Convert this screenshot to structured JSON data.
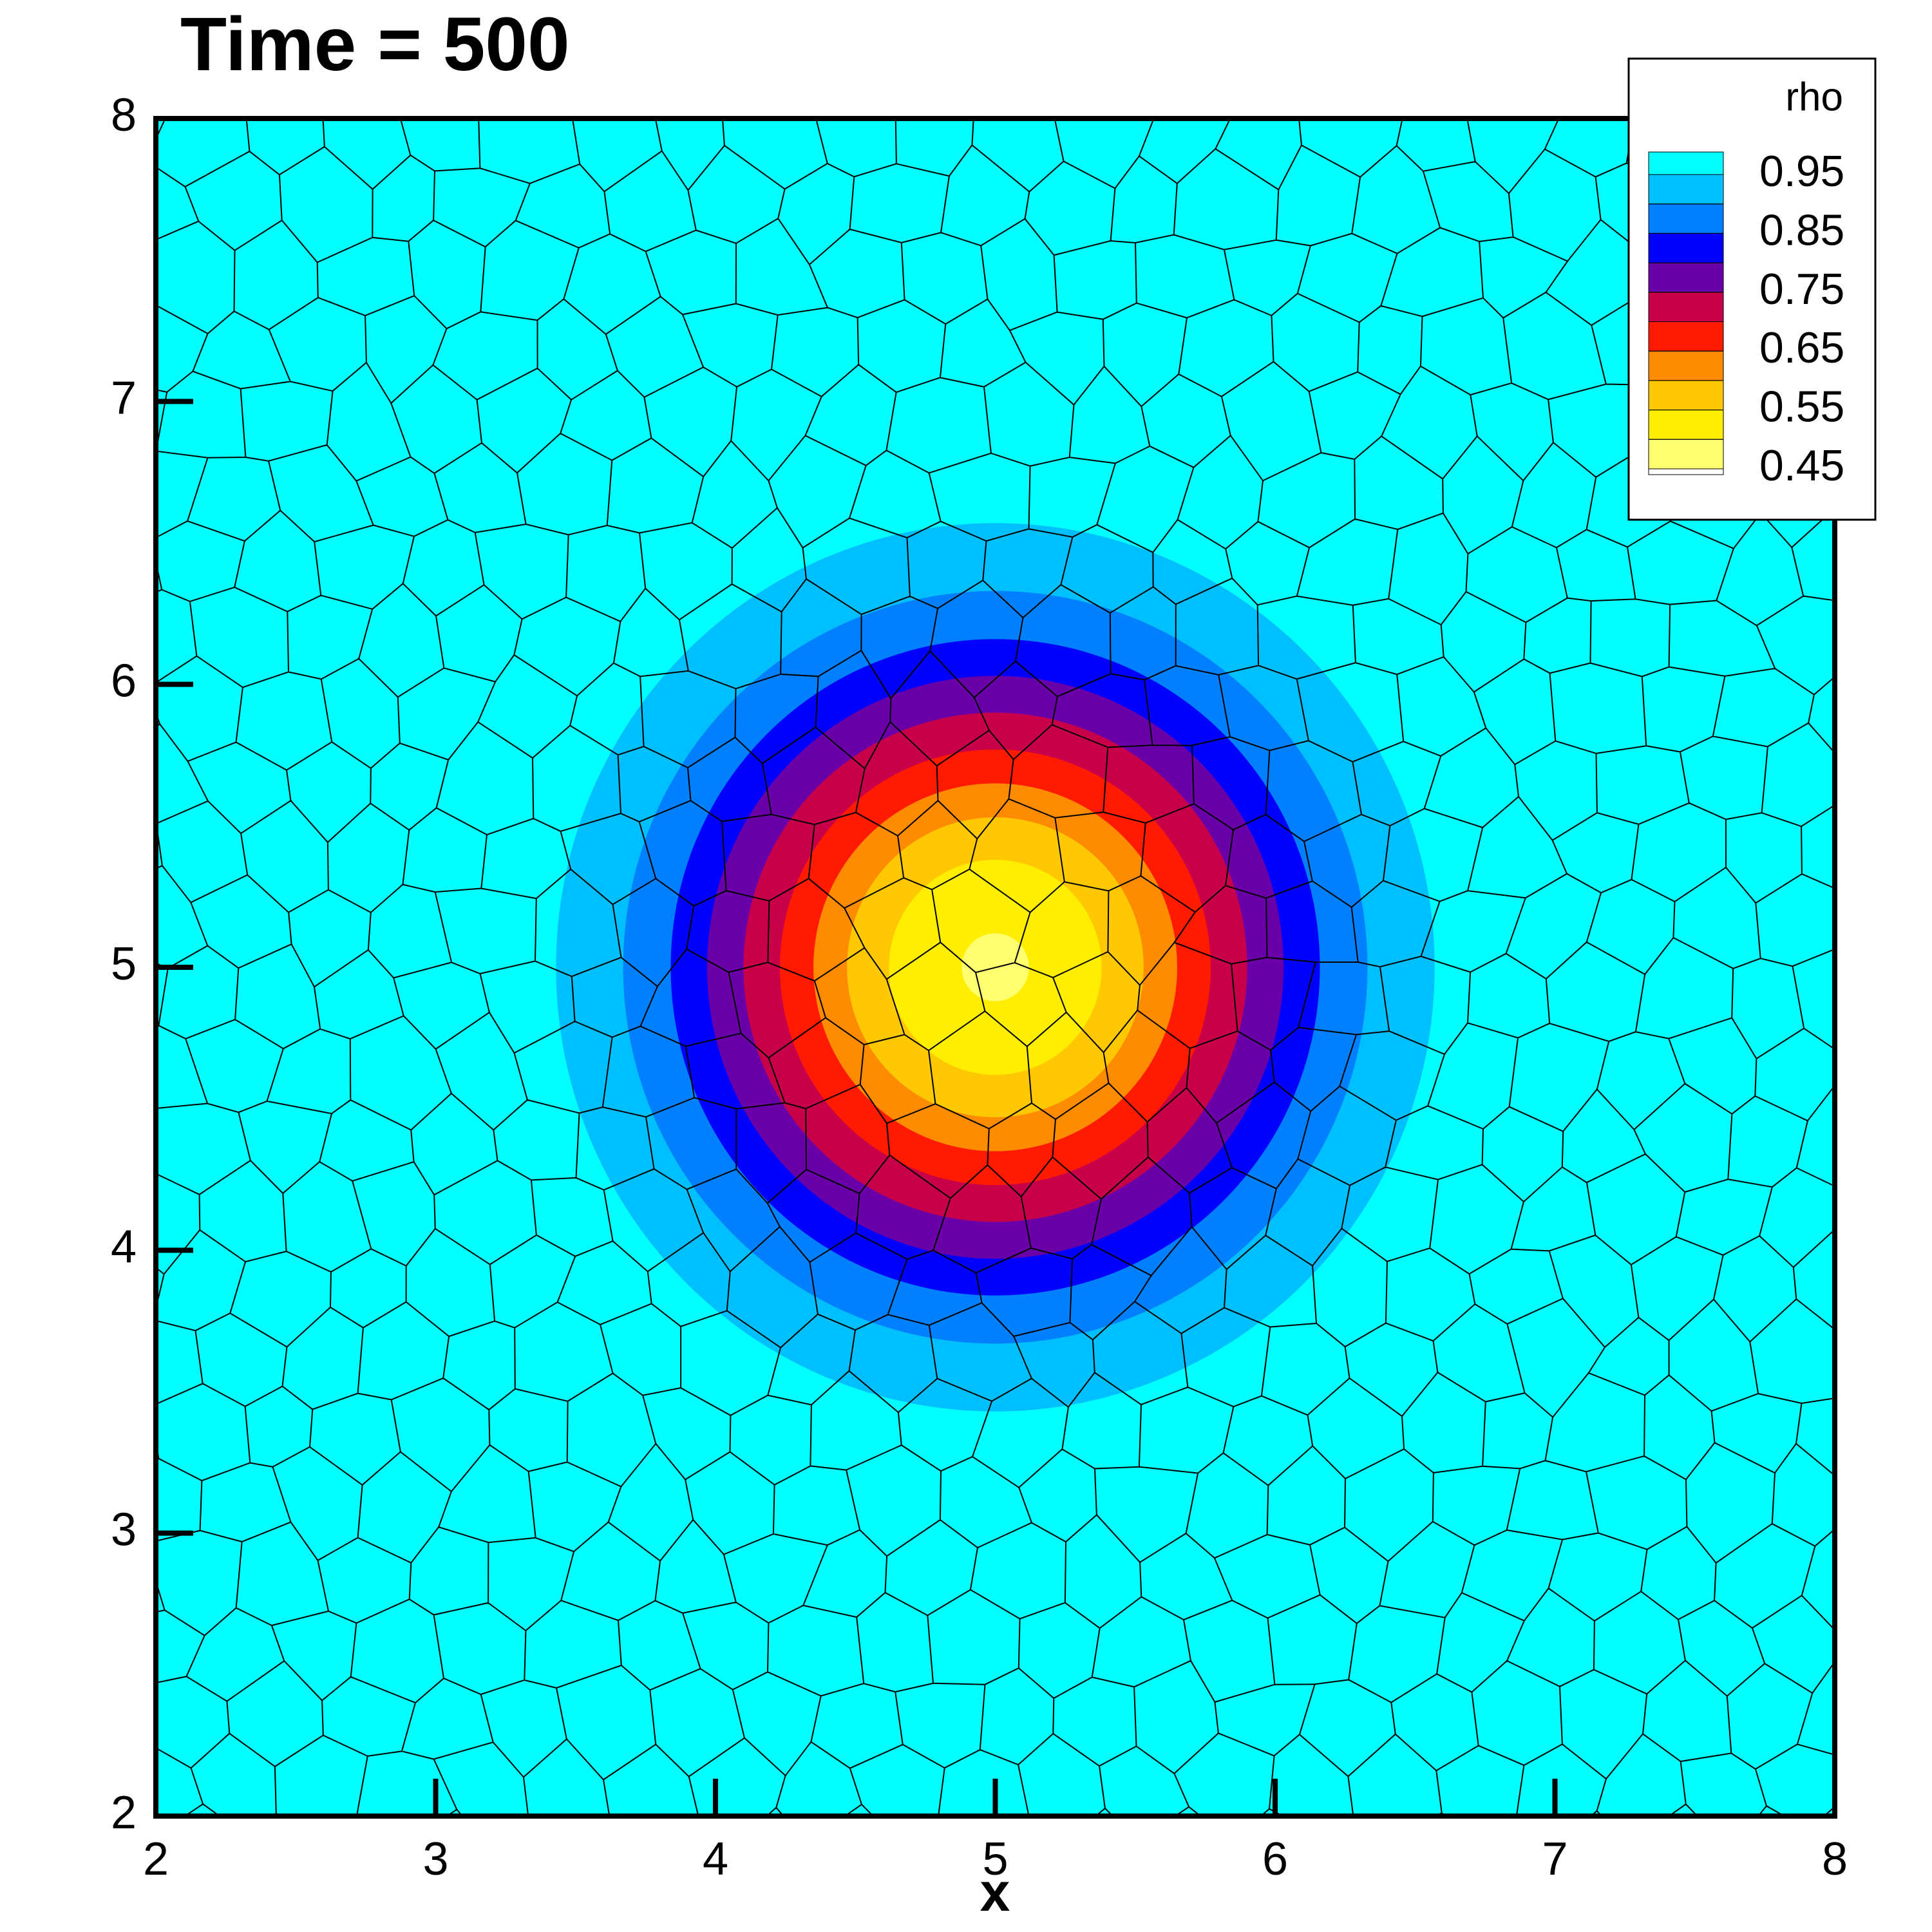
{
  "chart_data": {
    "type": "contour",
    "title": "Time = 500",
    "x_label": "x",
    "xlim": [
      2,
      8
    ],
    "ylim": [
      2,
      8
    ],
    "xticks": [
      2,
      3,
      4,
      5,
      6,
      7,
      8
    ],
    "yticks": [
      2,
      3,
      4,
      5,
      6,
      7,
      8
    ],
    "center": [
      5,
      5
    ],
    "legend_title": "rho",
    "levels": [
      0.95,
      0.9,
      0.85,
      0.8,
      0.75,
      0.7,
      0.65,
      0.6,
      0.55,
      0.5,
      0.45
    ],
    "radii": [
      1.57,
      1.33,
      1.16,
      1.03,
      0.9,
      0.77,
      0.65,
      0.53,
      0.38,
      0.12,
      null
    ],
    "colors": [
      "#00ffff",
      "#00bfff",
      "#0080ff",
      "#0000ff",
      "#6a00a8",
      "#c8004a",
      "#ff1a00",
      "#ff8c00",
      "#ffc800",
      "#ffee00",
      "#ffff70",
      "#ffffff"
    ],
    "legend_ticks": [
      0.95,
      0.85,
      0.75,
      0.65,
      0.55,
      0.45
    ]
  }
}
